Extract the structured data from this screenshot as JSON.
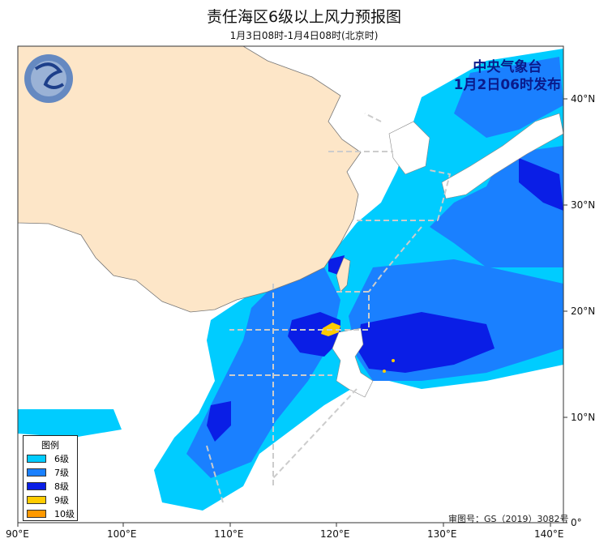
{
  "title": "责任海区6级以上风力预报图",
  "subtitle": "1月3日08时-1月4日08时(北京时)",
  "issuer": {
    "line1": "中央气象台",
    "line2": "1月2日06时发布"
  },
  "review_number": "审图号：GS（2019）3082号",
  "legend": {
    "title": "图例",
    "items": [
      {
        "label": "6级",
        "color": "#00ccff"
      },
      {
        "label": "7级",
        "color": "#1a80ff"
      },
      {
        "label": "8级",
        "color": "#0a1ee6"
      },
      {
        "label": "9级",
        "color": "#ffcc00"
      },
      {
        "label": "10级",
        "color": "#ff9900"
      }
    ]
  },
  "axes": {
    "x_ticks": [
      "90°E",
      "100°E",
      "110°E",
      "120°E",
      "130°E",
      "140°E"
    ],
    "y_ticks": [
      "0°",
      "10°N",
      "20°N",
      "30°N",
      "40°N"
    ]
  },
  "colors": {
    "land": "#fde6c8",
    "boundary": "#cccccc"
  }
}
